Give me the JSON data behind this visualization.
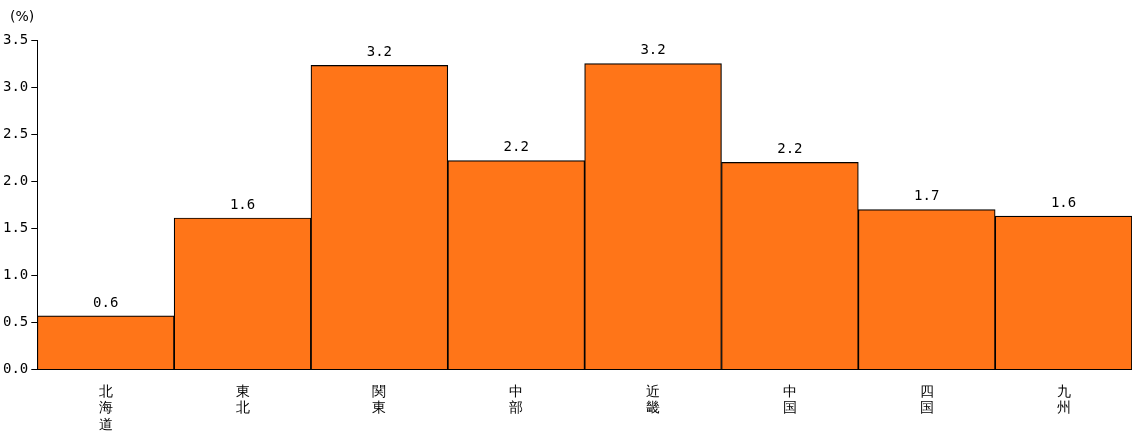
{
  "chart_data": {
    "type": "bar",
    "ylabel": "(%)",
    "categories": [
      "北海道",
      "東北",
      "関東",
      "中部",
      "近畿",
      "中国",
      "四国",
      "九州"
    ],
    "values": [
      0.57,
      1.61,
      3.23,
      2.22,
      3.25,
      2.2,
      1.7,
      1.63
    ],
    "value_labels": [
      "0.6",
      "1.6",
      "3.2",
      "2.2",
      "3.2",
      "2.2",
      "1.7",
      "1.6"
    ],
    "color": "#ff7518",
    "ylim": [
      0,
      3.5
    ],
    "yticks": [
      {
        "value": 0,
        "label": "0.0"
      },
      {
        "value": 0.5,
        "label": "0.5"
      },
      {
        "value": 1,
        "label": "1.0"
      },
      {
        "value": 1.5,
        "label": "1.5"
      },
      {
        "value": 2,
        "label": "2.0"
      },
      {
        "value": 2.5,
        "label": "2.5"
      },
      {
        "value": 3,
        "label": "3.0"
      },
      {
        "value": 3.5,
        "label": "3.5"
      }
    ],
    "grid": false,
    "legend": false
  }
}
